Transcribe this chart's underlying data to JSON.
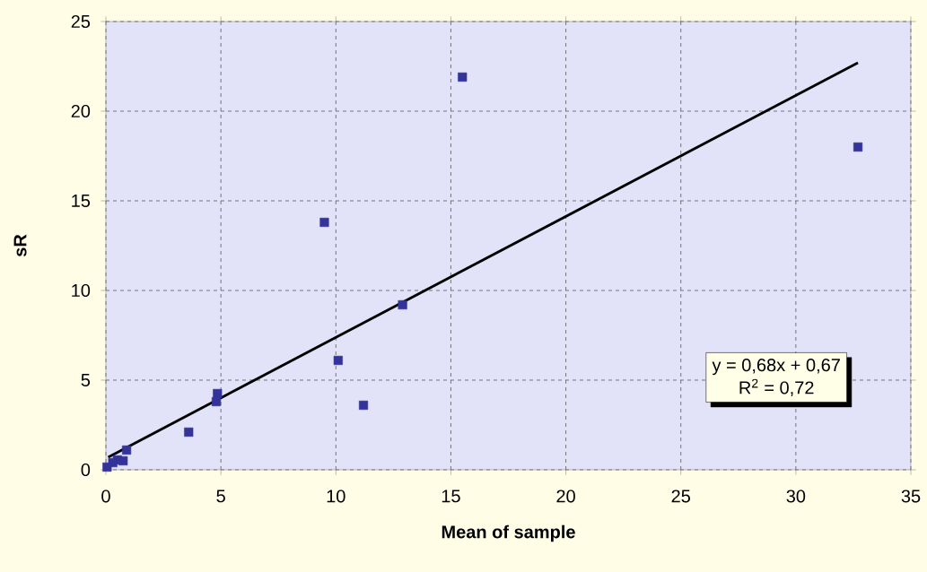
{
  "chart_data": {
    "type": "scatter",
    "xlabel": "Mean of sample",
    "ylabel": "sR",
    "xlim": [
      0,
      35
    ],
    "ylim": [
      0,
      25
    ],
    "xticks": [
      0,
      5,
      10,
      15,
      20,
      25,
      30,
      35
    ],
    "yticks": [
      0,
      5,
      10,
      15,
      20,
      25
    ],
    "grid": true,
    "series": [
      {
        "marker": "square",
        "color": "#333399",
        "x": [
          15.5,
          32.7,
          9.5,
          12.9,
          10.1,
          11.2,
          4.85,
          4.8,
          3.6,
          0.9,
          0.75,
          0.5,
          0.3,
          0.1,
          0.05
        ],
        "values": [
          21.9,
          18.0,
          13.8,
          9.2,
          6.1,
          3.6,
          4.25,
          3.8,
          2.1,
          1.1,
          0.5,
          0.55,
          0.4,
          null,
          0.15
        ]
      },
      {
        "type": "line",
        "color": "#000000",
        "x": [
          0.1,
          32.7
        ],
        "values": [
          0.7,
          22.7
        ]
      }
    ],
    "annotations": [
      "y = 0,68x + 0,67",
      "R$^{2}$ = 0,72"
    ]
  }
}
